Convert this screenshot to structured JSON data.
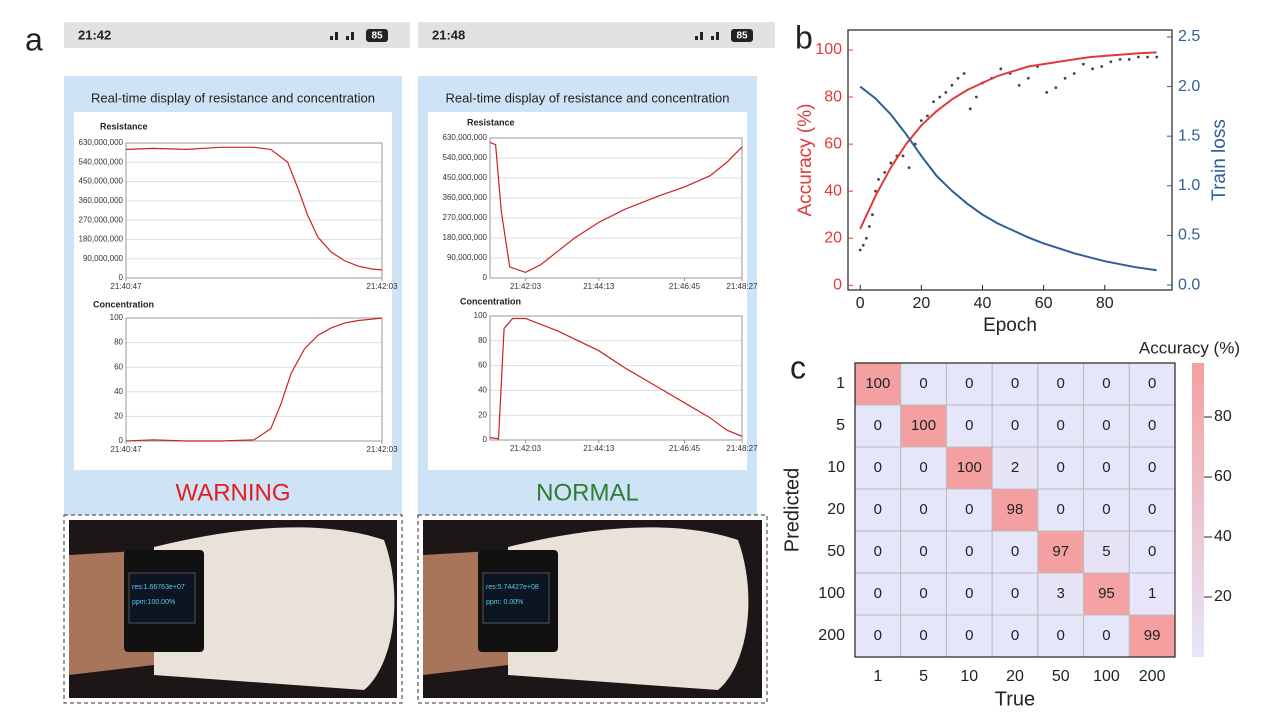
{
  "panel_labels": [
    "a",
    "b",
    "c"
  ],
  "screens": [
    {
      "time": "21:42",
      "battery": "85",
      "title": "Real-time display of resistance and concentration",
      "status": "WARNING",
      "status_color": "#e02020",
      "watch_lines": [
        "res:1.66763e+07",
        "ppm:100.00%"
      ]
    },
    {
      "time": "21:48",
      "battery": "85",
      "title": "Real-time display of resistance and concentration",
      "status": "NORMAL",
      "status_color": "#2e7d32",
      "watch_lines": [
        "res:5.74427e+08",
        "ppm: 0.00%"
      ]
    }
  ],
  "chart_data": [
    {
      "type": "line",
      "title": "Resistance",
      "color": "#cc2222",
      "grid": true,
      "x": [
        "21:40:47",
        "21:40:55",
        "21:41:05",
        "21:41:15",
        "21:41:25",
        "21:41:30",
        "21:41:35",
        "21:41:38",
        "21:41:41",
        "21:41:44",
        "21:41:48",
        "21:41:52",
        "21:41:56",
        "21:42:00",
        "21:42:03"
      ],
      "values": [
        600000000,
        605000000,
        600000000,
        610000000,
        610000000,
        600000000,
        540000000,
        420000000,
        290000000,
        190000000,
        120000000,
        80000000,
        55000000,
        42000000,
        38000000
      ],
      "xlim": [
        "21:40:47",
        "21:42:03"
      ],
      "xticks": [
        "21:40:47",
        "21:42:03"
      ],
      "ylim": [
        0,
        630000000
      ],
      "yticks": [
        0,
        {
          "value": 90000000,
          "label": "90,000,000"
        },
        {
          "value": 180000000,
          "label": "180,000,000"
        },
        {
          "value": 270000000,
          "label": "270,000,000"
        },
        {
          "value": 360000000,
          "label": "360,000,000"
        },
        {
          "value": 450000000,
          "label": "450,000,000"
        },
        {
          "value": 540000000,
          "label": "540,000,000"
        },
        {
          "value": 630000000,
          "label": "630,000,000"
        }
      ]
    },
    {
      "type": "line",
      "title": "Concentration",
      "color": "#cc2222",
      "grid": true,
      "x": [
        "21:40:47",
        "21:40:55",
        "21:41:05",
        "21:41:15",
        "21:41:25",
        "21:41:30",
        "21:41:33",
        "21:41:36",
        "21:41:40",
        "21:41:44",
        "21:41:48",
        "21:41:52",
        "21:41:56",
        "21:42:00",
        "21:42:03"
      ],
      "values": [
        0,
        1,
        0,
        0,
        1,
        10,
        30,
        55,
        75,
        86,
        92,
        96,
        98,
        99,
        100
      ],
      "xlim": [
        "21:40:47",
        "21:42:03"
      ],
      "xticks": [
        "21:40:47",
        "21:42:03"
      ],
      "ylim": [
        0,
        100
      ],
      "yticks": [
        0,
        20,
        40,
        60,
        80,
        100
      ]
    },
    {
      "type": "line",
      "title": "Resistance",
      "color": "#cc2222",
      "grid": true,
      "x": [
        "21:41:00",
        "21:41:10",
        "21:41:20",
        "21:41:35",
        "21:42:03",
        "21:42:30",
        "21:43:00",
        "21:43:30",
        "21:44:13",
        "21:45:00",
        "21:46:00",
        "21:46:45",
        "21:47:30",
        "21:48:00",
        "21:48:27"
      ],
      "values": [
        610000000,
        600000000,
        300000000,
        50000000,
        25000000,
        60000000,
        120000000,
        180000000,
        250000000,
        310000000,
        370000000,
        410000000,
        460000000,
        520000000,
        590000000
      ],
      "xlim": [
        "21:41:00",
        "21:48:27"
      ],
      "xticks": [
        "21:42:03",
        "21:44:13",
        "21:46:45",
        "21:48:27"
      ],
      "ylim": [
        0,
        630000000
      ],
      "yticks": [
        0,
        {
          "value": 90000000,
          "label": "90,000,000"
        },
        {
          "value": 180000000,
          "label": "180,000,000"
        },
        {
          "value": 270000000,
          "label": "270,000,000"
        },
        {
          "value": 360000000,
          "label": "360,000,000"
        },
        {
          "value": 450000000,
          "label": "450,000,000"
        },
        {
          "value": 540000000,
          "label": "540,000,000"
        },
        {
          "value": 630000000,
          "label": "630,000,000"
        }
      ]
    },
    {
      "type": "line",
      "title": "Concentration",
      "color": "#cc2222",
      "grid": true,
      "x": [
        "21:41:00",
        "21:41:15",
        "21:41:25",
        "21:41:40",
        "21:42:03",
        "21:43:00",
        "21:44:13",
        "21:45:00",
        "21:46:00",
        "21:46:45",
        "21:47:30",
        "21:48:00",
        "21:48:27"
      ],
      "values": [
        2,
        1,
        90,
        98,
        98,
        88,
        72,
        58,
        42,
        30,
        18,
        8,
        3
      ],
      "xlim": [
        "21:41:00",
        "21:48:27"
      ],
      "xticks": [
        "21:42:03",
        "21:44:13",
        "21:46:45",
        "21:48:27"
      ],
      "ylim": [
        0,
        100
      ],
      "yticks": [
        0,
        20,
        40,
        60,
        80,
        100
      ]
    },
    {
      "type": "combo",
      "xlabel": "Epoch",
      "ylabel": "Accuracy (%)",
      "y2label": "Train loss",
      "ylabel_color": "#e03a3a",
      "y2label_color": "#2f5f97",
      "xlim": [
        -4,
        102
      ],
      "xticks": [
        0,
        20,
        40,
        60,
        80
      ],
      "ylim": [
        -2,
        108.5
      ],
      "yticks": [
        0,
        20,
        40,
        60,
        80,
        100
      ],
      "y2lim": [
        -0.05,
        2.57
      ],
      "y2ticks": [
        {
          "value": 0,
          "label": "0.0"
        },
        0.5,
        {
          "value": 1,
          "label": "1.0"
        },
        1.5,
        {
          "value": 2,
          "label": "2.0"
        },
        2.5
      ],
      "series": [
        {
          "mode": "scatter",
          "color": "#444444",
          "x": [
            0,
            1,
            2,
            3,
            4,
            5,
            6,
            8,
            10,
            12,
            14,
            16,
            18,
            20,
            22,
            24,
            26,
            28,
            30,
            32,
            34,
            36,
            38,
            40,
            43,
            46,
            49,
            52,
            55,
            58,
            61,
            64,
            67,
            70,
            73,
            76,
            79,
            82,
            85,
            88,
            91,
            94,
            97
          ],
          "values": [
            15,
            17,
            20,
            25,
            30,
            40,
            45,
            48,
            52,
            55,
            55,
            50,
            60,
            70,
            72,
            78,
            80,
            82,
            85,
            88,
            90,
            75,
            80,
            86,
            88,
            92,
            90,
            85,
            88,
            93,
            82,
            84,
            88,
            90,
            94,
            92,
            93,
            95,
            96,
            96,
            97,
            97,
            97
          ]
        },
        {
          "mode": "line",
          "color": "#e03a3a",
          "x": [
            0,
            5,
            10,
            15,
            20,
            25,
            30,
            35,
            40,
            45,
            50,
            55,
            60,
            65,
            70,
            75,
            80,
            85,
            90,
            97
          ],
          "values": [
            24,
            38,
            50,
            60,
            68,
            74,
            79,
            83,
            86,
            89,
            91,
            93,
            94,
            95,
            96,
            97,
            97.5,
            98,
            98.5,
            99
          ]
        },
        {
          "mode": "line",
          "axis": "y2",
          "color": "#2f5f97",
          "x": [
            0,
            5,
            10,
            15,
            20,
            25,
            30,
            35,
            40,
            45,
            50,
            55,
            60,
            65,
            70,
            75,
            80,
            85,
            90,
            97
          ],
          "values": [
            2.0,
            1.88,
            1.72,
            1.52,
            1.3,
            1.1,
            0.95,
            0.82,
            0.71,
            0.62,
            0.55,
            0.48,
            0.42,
            0.37,
            0.32,
            0.28,
            0.24,
            0.21,
            0.18,
            0.15
          ]
        }
      ]
    },
    {
      "type": "heatmap",
      "xlabel": "True",
      "ylabel": "Predicted",
      "colorbar_label": "Accuracy (%)",
      "categories": [
        "1",
        "5",
        "10",
        "20",
        "50",
        "100",
        "200"
      ],
      "values": [
        [
          100,
          0,
          0,
          0,
          0,
          0,
          0
        ],
        [
          0,
          100,
          0,
          0,
          0,
          0,
          0
        ],
        [
          0,
          0,
          100,
          2,
          0,
          0,
          0
        ],
        [
          0,
          0,
          0,
          98,
          0,
          0,
          0
        ],
        [
          0,
          0,
          0,
          0,
          97,
          5,
          0
        ],
        [
          0,
          0,
          0,
          0,
          3,
          95,
          1
        ],
        [
          0,
          0,
          0,
          0,
          0,
          0,
          99
        ]
      ],
      "clim": [
        0,
        98
      ],
      "cticks": [
        20,
        40,
        60,
        80
      ],
      "colors": [
        "#e6e6fa",
        "#f4a0a0"
      ]
    }
  ]
}
